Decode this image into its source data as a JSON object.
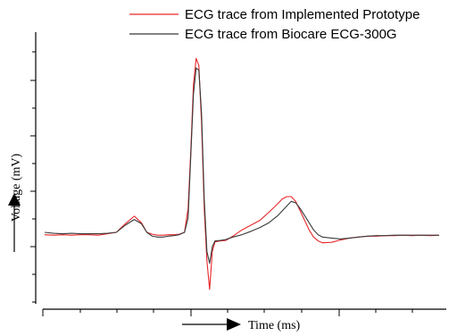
{
  "chart_data": {
    "type": "line",
    "title": "",
    "xlabel": "Time (ms)",
    "ylabel": "Voltage (mV)",
    "x_tick_labels": false,
    "y_tick_labels": false,
    "grid": false,
    "legend_position": "top-right",
    "colors": {
      "prototype": "#e8262a",
      "biocare": "#3a3a3a",
      "axis": "#000000"
    },
    "series": [
      {
        "name": "ECG trace from Implemented Prototype",
        "color": "#e8262a",
        "x": [
          0,
          10,
          20,
          30,
          40,
          50,
          60,
          70,
          80,
          90,
          100,
          108,
          114,
          120,
          126,
          132,
          138,
          144,
          150,
          156,
          160,
          163,
          166,
          169,
          172,
          175,
          178,
          181,
          184,
          187,
          190,
          196,
          202,
          210,
          220,
          230,
          240,
          250,
          260,
          265,
          270,
          275,
          280,
          285,
          290,
          295,
          300,
          305,
          310,
          320,
          330,
          340,
          350,
          360,
          370,
          380,
          390,
          400,
          410,
          420,
          430,
          440
        ],
        "y": [
          0.25,
          0.24,
          0.25,
          0.24,
          0.25,
          0.25,
          0.24,
          0.27,
          0.3,
          0.48,
          0.64,
          0.5,
          0.3,
          0.26,
          0.24,
          0.24,
          0.25,
          0.25,
          0.26,
          0.3,
          0.8,
          2.0,
          3.4,
          3.95,
          3.8,
          2.6,
          0.8,
          -0.3,
          -0.9,
          -0.1,
          0.1,
          0.12,
          0.13,
          0.22,
          0.35,
          0.45,
          0.55,
          0.72,
          0.9,
          1.0,
          1.05,
          1.05,
          0.95,
          0.75,
          0.55,
          0.35,
          0.2,
          0.12,
          0.08,
          0.09,
          0.14,
          0.18,
          0.2,
          0.22,
          0.22,
          0.23,
          0.23,
          0.24,
          0.23,
          0.24,
          0.23,
          0.24
        ]
      },
      {
        "name": "ECG trace from Biocare ECG-300G",
        "color": "#3a3a3a",
        "x": [
          0,
          10,
          20,
          30,
          40,
          50,
          60,
          70,
          80,
          90,
          100,
          108,
          114,
          120,
          126,
          132,
          138,
          144,
          150,
          156,
          160,
          163,
          166,
          169,
          172,
          175,
          178,
          181,
          184,
          187,
          190,
          196,
          202,
          210,
          220,
          230,
          240,
          250,
          260,
          265,
          270,
          275,
          280,
          285,
          290,
          295,
          300,
          305,
          310,
          320,
          330,
          340,
          350,
          360,
          370,
          380,
          390,
          400,
          410,
          420,
          430,
          440
        ],
        "y": [
          0.3,
          0.28,
          0.27,
          0.28,
          0.27,
          0.27,
          0.27,
          0.28,
          0.3,
          0.45,
          0.57,
          0.48,
          0.3,
          0.22,
          0.2,
          0.2,
          0.22,
          0.23,
          0.25,
          0.3,
          0.6,
          1.9,
          3.2,
          3.75,
          3.7,
          2.8,
          1.0,
          -0.1,
          -0.35,
          0.0,
          0.12,
          0.13,
          0.15,
          0.2,
          0.25,
          0.32,
          0.4,
          0.5,
          0.65,
          0.75,
          0.85,
          0.95,
          0.92,
          0.8,
          0.65,
          0.5,
          0.35,
          0.25,
          0.2,
          0.18,
          0.16,
          0.18,
          0.2,
          0.22,
          0.23,
          0.23,
          0.24,
          0.24,
          0.24,
          0.24,
          0.24,
          0.24
        ]
      }
    ],
    "xlim": [
      0,
      440
    ],
    "ylim": [
      -1.2,
      4.5
    ]
  }
}
